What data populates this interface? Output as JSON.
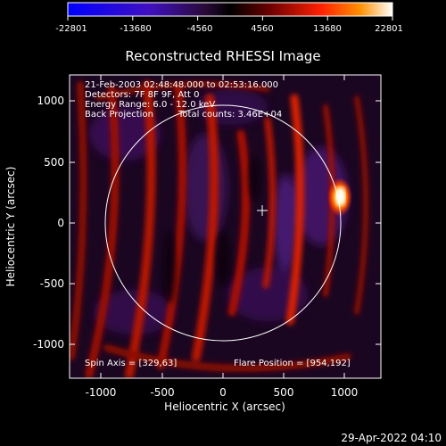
{
  "colorbar": {
    "ticks": [
      "-22801",
      "-13680",
      "-4560",
      "4560",
      "13680",
      "22801"
    ]
  },
  "title": "Reconstructed RHESSI Image",
  "info": {
    "time": "21-Feb-2003 02:48:48.000 to 02:53:16.000",
    "detectors": "Detectors: 7F 8F 9F, Att 0",
    "energy": "Energy Range: 6.0 - 12.0 keV",
    "method": "Back Projection",
    "counts": "Total counts: 3.46E+04"
  },
  "footer": {
    "spin_axis": "Spin Axis = [329,63]",
    "flare_position": "Flare Position = [954,192]"
  },
  "axes": {
    "xlabel": "Heliocentric X (arcsec)",
    "ylabel": "Heliocentric Y (arcsec)",
    "xticks": [
      "-1000",
      "-500",
      "0",
      "500",
      "1000"
    ],
    "yticks": [
      "-1000",
      "-500",
      "0",
      "500",
      "1000"
    ]
  },
  "timestamp": "29-Apr-2022 04:10",
  "colors": {
    "background": "#000000",
    "frame": "#ffffff",
    "colormap": [
      "#0000ff",
      "#4010c0",
      "#2a0a3a",
      "#000000",
      "#6a0000",
      "#ff2000",
      "#ff8000",
      "#ffffff"
    ]
  }
}
